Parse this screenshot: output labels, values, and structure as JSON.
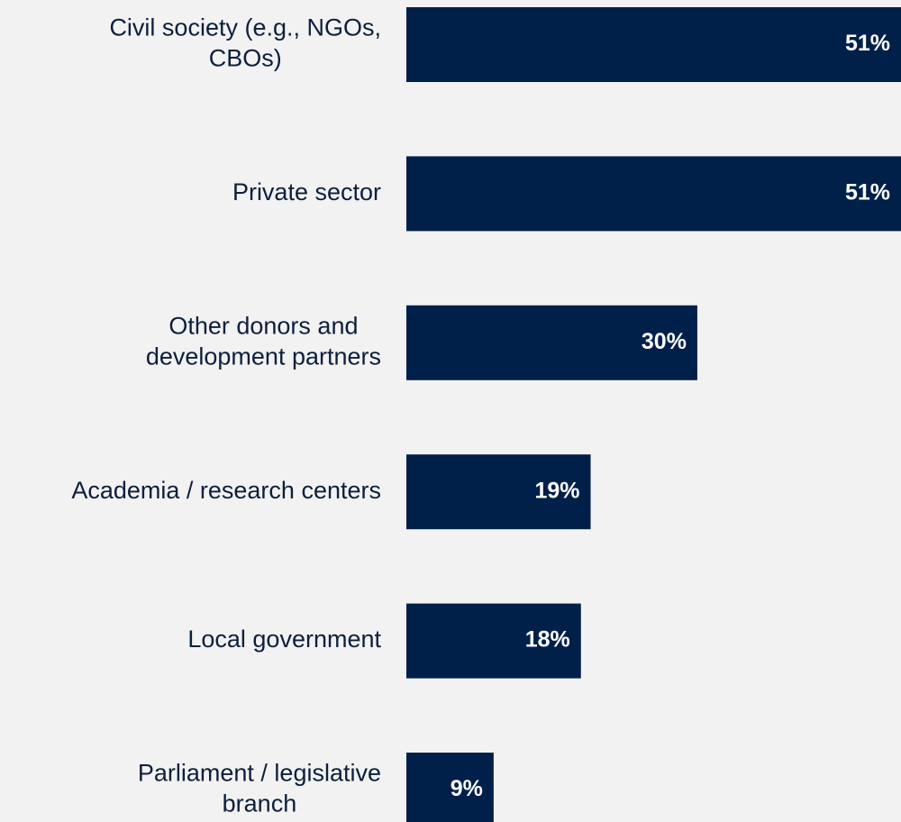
{
  "chart_data": {
    "type": "bar",
    "orientation": "horizontal",
    "categories": [
      [
        "Civil society (e.g., NGOs,",
        "CBOs)"
      ],
      [
        "Private sector"
      ],
      [
        "Other donors and",
        "development partners"
      ],
      [
        "Academia / research centers"
      ],
      [
        "Local government"
      ],
      [
        "Parliament / legislative",
        "branch"
      ]
    ],
    "values": [
      51,
      51,
      30,
      19,
      18,
      9
    ],
    "value_labels": [
      "51%",
      "51%",
      "30%",
      "19%",
      "18%",
      "9%"
    ],
    "xlim": [
      0,
      51
    ],
    "bar_color": "#00204a",
    "grid": false,
    "legend": "none"
  }
}
